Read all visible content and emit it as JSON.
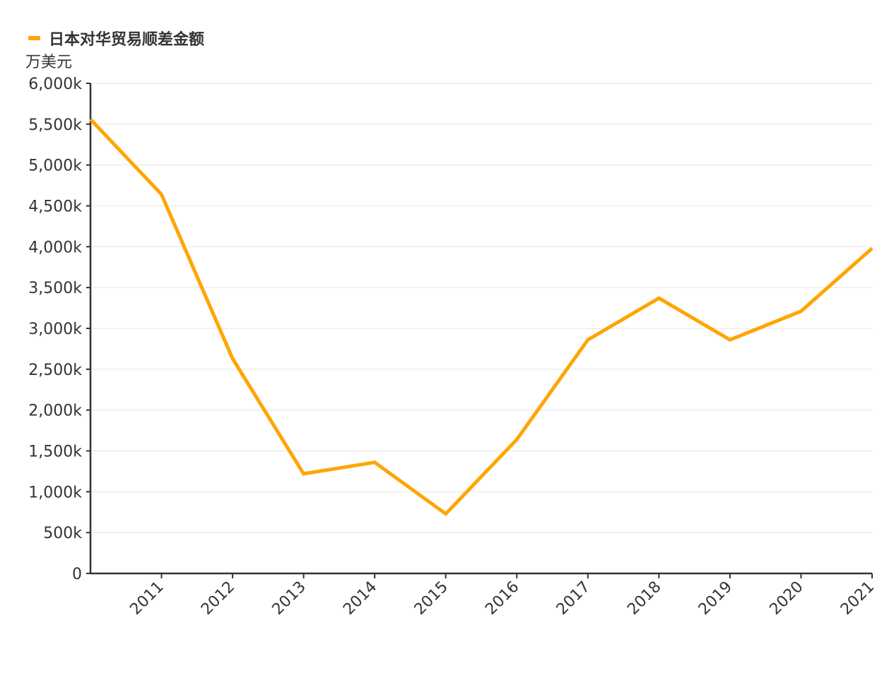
{
  "colors": {
    "series": "#FFA500",
    "axis": "#333333",
    "grid": "#e6e6e6",
    "text": "#333333"
  },
  "chart_data": {
    "type": "line",
    "title": "",
    "legend": {
      "entries": [
        "日本对华贸易顺差金额"
      ],
      "position": "top-left"
    },
    "ylabel": "万美元",
    "xlabel": "",
    "ylim": [
      0,
      6000000
    ],
    "yticks": [
      0,
      500000,
      1000000,
      1500000,
      2000000,
      2500000,
      3000000,
      3500000,
      4000000,
      4500000,
      5000000,
      5500000,
      6000000
    ],
    "ytick_labels": [
      "0",
      "500k",
      "1,000k",
      "1,500k",
      "2,000k",
      "2,500k",
      "3,000k",
      "3,500k",
      "4,000k",
      "4,500k",
      "5,000k",
      "5,500k",
      "6,000k"
    ],
    "x": [
      2010,
      2011,
      2012,
      2013,
      2014,
      2015,
      2016,
      2017,
      2018,
      2019,
      2020,
      2021
    ],
    "xlim": [
      2010,
      2021
    ],
    "xtick_labels": [
      "2011",
      "2012",
      "2013",
      "2014",
      "2015",
      "2016",
      "2017",
      "2018",
      "2019",
      "2020",
      "2021"
    ],
    "grid": true,
    "series": [
      {
        "name": "日本对华贸易顺差金额",
        "values": [
          5560000,
          4640000,
          2630000,
          1220000,
          1360000,
          730000,
          1640000,
          2860000,
          3370000,
          2860000,
          3210000,
          3980000
        ]
      }
    ]
  }
}
